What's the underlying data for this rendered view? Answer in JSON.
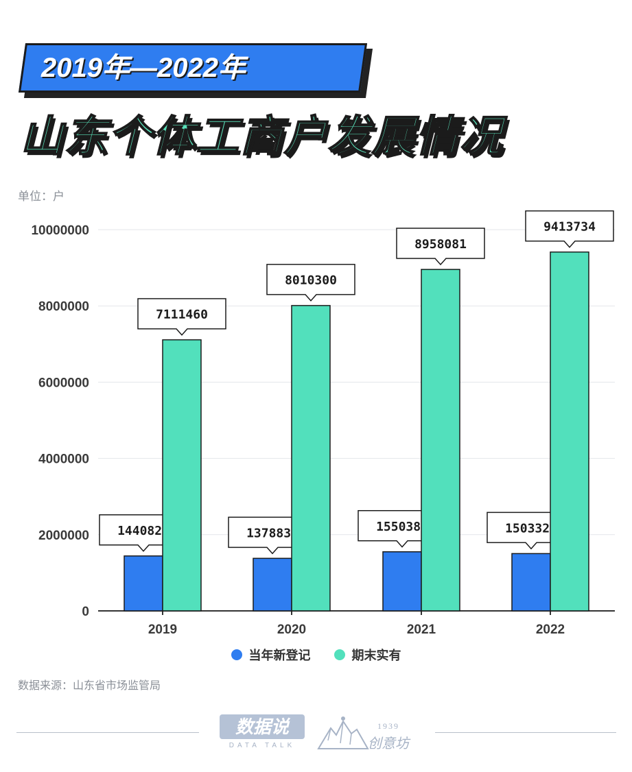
{
  "header": {
    "banner_text": "2019年—2022年",
    "main_title": "山东个体工商户发展情况"
  },
  "unit_label": "单位：户",
  "source": "数据来源：山东省市场监管局",
  "footer": {
    "logo_main": "数据说",
    "logo_sub": "DATA TALK",
    "studio_year": "1939",
    "studio_name": "创意坊"
  },
  "colors": {
    "series_new": "#2f7df0",
    "series_total": "#52e0bc",
    "banner": "#2f7df0",
    "title": "#59e0b9"
  },
  "chart_data": {
    "type": "bar",
    "categories": [
      "2019",
      "2020",
      "2021",
      "2022"
    ],
    "series": [
      {
        "name": "当年新登记",
        "values": [
          1440822,
          1378839,
          1550382,
          1503328
        ],
        "color": "#2f7df0"
      },
      {
        "name": "期末实有",
        "values": [
          7111460,
          8010300,
          8958081,
          9413734
        ],
        "color": "#52e0bc"
      }
    ],
    "yticks": [
      "0",
      "2000000",
      "4000000",
      "6000000",
      "8000000",
      "10000000"
    ],
    "ylim": [
      0,
      10000000
    ],
    "grid": true,
    "legend": "bottom-center",
    "xlabel": "",
    "ylabel": ""
  }
}
